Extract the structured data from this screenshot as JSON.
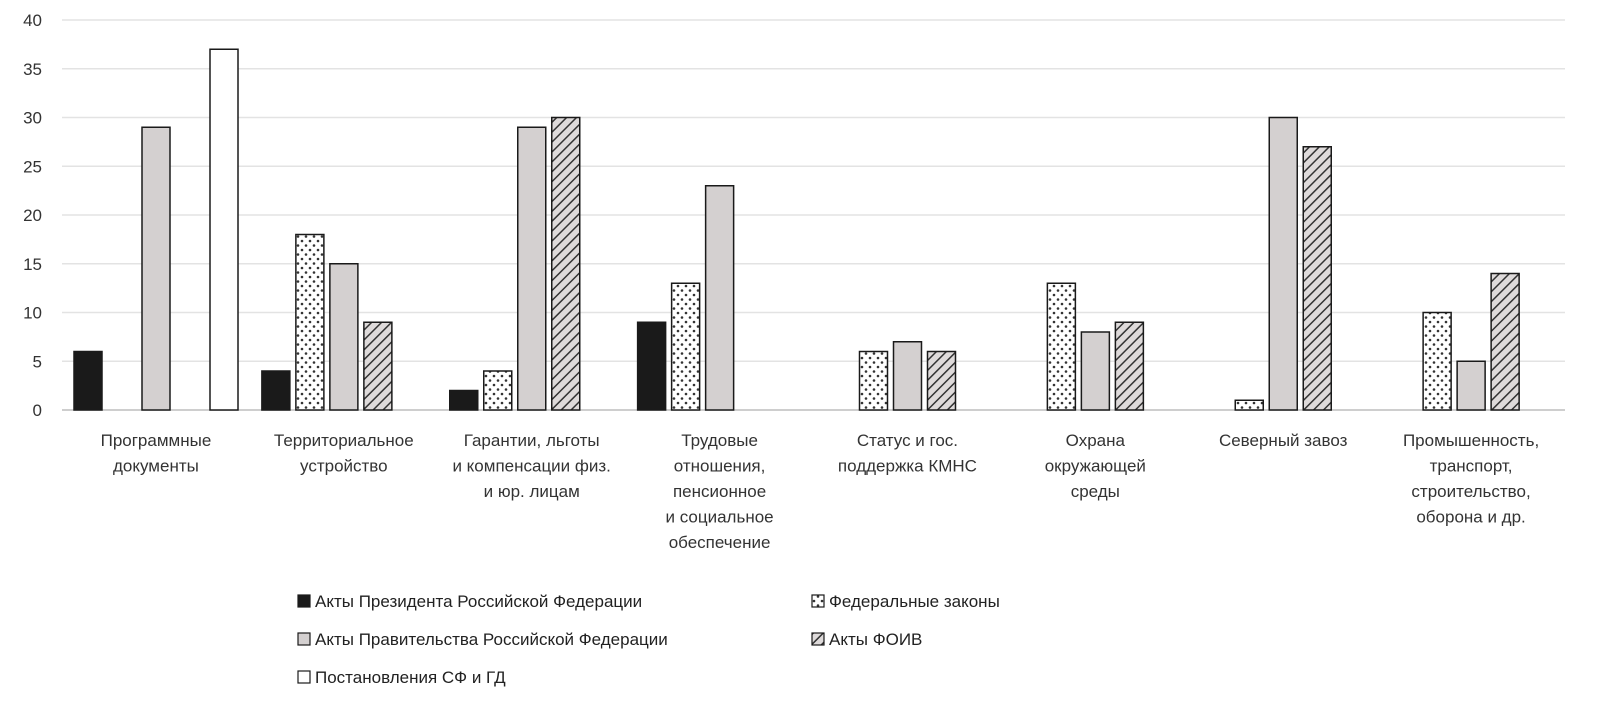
{
  "chart_data": {
    "type": "bar",
    "title": "",
    "xlabel": "",
    "ylabel": "",
    "ylim": [
      0,
      40
    ],
    "yticks": [
      0,
      5,
      10,
      15,
      20,
      25,
      30,
      35,
      40
    ],
    "grid": "horizontal",
    "legend_position": "bottom",
    "categories": [
      [
        "Программные",
        "документы"
      ],
      [
        "Территориальное",
        "устройство"
      ],
      [
        "Гарантии, льготы",
        "и компенсации физ.",
        "и юр. лицам"
      ],
      [
        "Трудовые",
        "отношения,",
        "пенсионное",
        "и социальное",
        "обеспечение"
      ],
      [
        "Статус и гос.",
        "поддержка КМНС"
      ],
      [
        "Охрана",
        "окружающей",
        "среды"
      ],
      [
        "Северный завоз"
      ],
      [
        "Промышенность,",
        "транспорт,",
        "строительство,",
        "оборона и др."
      ]
    ],
    "series": [
      {
        "name": "Акты Президента Российской Федерации",
        "pattern": "solid-black",
        "values": [
          6,
          4,
          2,
          9,
          0,
          0,
          0,
          0
        ]
      },
      {
        "name": "Федеральные законы",
        "pattern": "dots",
        "values": [
          0,
          18,
          4,
          13,
          6,
          13,
          1,
          10
        ]
      },
      {
        "name": "Акты Правительства Российской Федерации",
        "pattern": "solid-gray",
        "values": [
          29,
          15,
          29,
          23,
          7,
          8,
          30,
          5
        ]
      },
      {
        "name": "Акты ФОИВ",
        "pattern": "diagonal-hatch",
        "values": [
          0,
          9,
          30,
          0,
          6,
          9,
          27,
          14
        ]
      },
      {
        "name": "Постановления СФ и ГД",
        "pattern": "solid-white",
        "values": [
          37,
          0,
          0,
          0,
          0,
          0,
          0,
          0
        ]
      }
    ],
    "colors": {
      "president": "#1a1a1a",
      "laws_fill": "#ffffff",
      "laws_dots": "#333333",
      "government": "#d4d0d0",
      "foiv_fill": "#dedada",
      "foiv_hatch": "#333333",
      "sf_gd": "#ffffff",
      "grid": "#e3e3e3",
      "axis": "#bdbdbd"
    }
  }
}
